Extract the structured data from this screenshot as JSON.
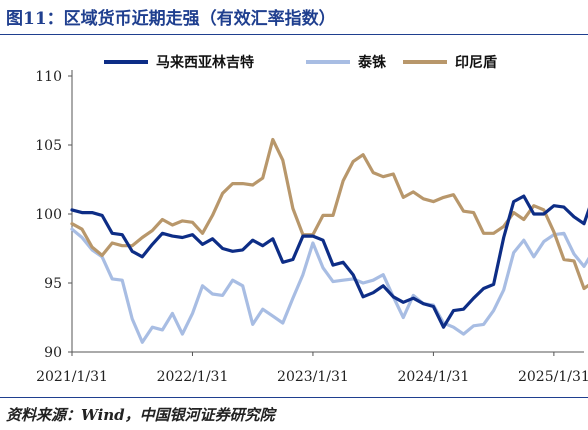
{
  "header": {
    "title": "图11：区域货币近期走强（有效汇率指数）"
  },
  "footer": {
    "source": "资料来源：Wind，中国银河证券研究院"
  },
  "chart_data": {
    "type": "line",
    "title": "图11：区域货币近期走强（有效汇率指数）",
    "xlabel": "",
    "ylabel": "",
    "ylim": [
      90,
      110
    ],
    "yticks": [
      90,
      95,
      100,
      105,
      110
    ],
    "xlim": [
      0,
      51
    ],
    "xticks": [
      {
        "x": 0,
        "label": "2021/1/31"
      },
      {
        "x": 12,
        "label": "2022/1/31"
      },
      {
        "x": 24,
        "label": "2023/1/31"
      },
      {
        "x": 36,
        "label": "2024/1/31"
      },
      {
        "x": 48,
        "label": "2025/1/31"
      }
    ],
    "legend_position": "top",
    "series": [
      {
        "name": "马来西亚林吉特",
        "color": "#0d2d86",
        "values": [
          100.3,
          100.1,
          100.1,
          99.9,
          98.6,
          98.5,
          97.3,
          96.9,
          97.8,
          98.6,
          98.4,
          98.3,
          98.5,
          97.8,
          98.2,
          97.5,
          97.3,
          97.4,
          98.1,
          97.7,
          98.2,
          96.5,
          96.7,
          98.4,
          98.4,
          98.1,
          96.3,
          96.5,
          95.6,
          94.0,
          94.3,
          94.8,
          94.0,
          93.6,
          93.9,
          93.5,
          93.3,
          91.8,
          93.0,
          93.1,
          93.9,
          94.6,
          94.9,
          98.3,
          100.9,
          101.3,
          100.0,
          100.0,
          100.6,
          100.5,
          99.8,
          99.3,
          101.4,
          101.1
        ]
      },
      {
        "name": "泰铢",
        "color": "#a8bde3",
        "values": [
          98.9,
          98.3,
          97.4,
          96.9,
          95.3,
          95.2,
          92.4,
          90.7,
          91.8,
          91.6,
          92.8,
          91.3,
          92.8,
          94.8,
          94.2,
          94.1,
          95.2,
          94.8,
          92.0,
          93.1,
          92.6,
          92.1,
          93.9,
          95.6,
          97.9,
          96.1,
          95.1,
          95.2,
          95.3,
          95.0,
          95.2,
          95.6,
          94.0,
          92.5,
          94.1,
          93.5,
          93.4,
          92.1,
          91.8,
          91.3,
          91.9,
          92.0,
          93.0,
          94.5,
          97.2,
          98.1,
          96.9,
          98.0,
          98.5,
          98.6,
          97.1,
          96.2,
          97.4,
          97.6
        ]
      },
      {
        "name": "印尼盾",
        "color": "#b8976b",
        "values": [
          99.3,
          98.9,
          97.6,
          97.0,
          97.9,
          97.7,
          97.7,
          98.3,
          98.8,
          99.6,
          99.2,
          99.5,
          99.4,
          98.6,
          99.9,
          101.5,
          102.2,
          102.2,
          102.1,
          102.6,
          105.4,
          103.9,
          100.4,
          98.5,
          98.5,
          99.9,
          99.9,
          102.4,
          103.8,
          104.3,
          103.0,
          102.7,
          102.9,
          101.2,
          101.6,
          101.1,
          100.9,
          101.2,
          101.4,
          100.2,
          100.1,
          98.6,
          98.6,
          99.1,
          100.1,
          99.6,
          100.6,
          100.3,
          98.7,
          96.7,
          96.6,
          94.6,
          95.1,
          95.2
        ]
      }
    ]
  }
}
